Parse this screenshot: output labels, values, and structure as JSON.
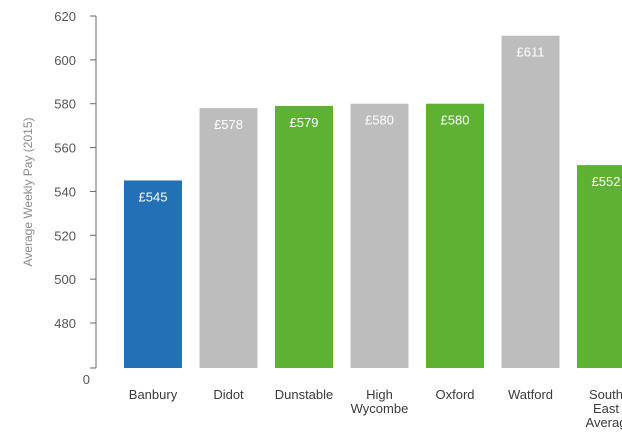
{
  "chart_data": {
    "type": "bar",
    "title": "",
    "xlabel": "",
    "ylabel": "Average Weekly Pay (2015)",
    "ylim": [
      0,
      620
    ],
    "axis_break": {
      "from": 0,
      "to": 480
    },
    "y_ticks": [
      480,
      500,
      520,
      540,
      560,
      580,
      600,
      620
    ],
    "y_zero_label": "0",
    "categories": [
      [
        "Banbury"
      ],
      [
        "Didot"
      ],
      [
        "Dunstable"
      ],
      [
        "High",
        "Wycombe"
      ],
      [
        "Oxford"
      ],
      [
        "Watford"
      ],
      [
        "South",
        "East",
        "Averag"
      ]
    ],
    "values": [
      545,
      578,
      579,
      580,
      580,
      611,
      552
    ],
    "data_labels": [
      "£545",
      "£578",
      "£579",
      "£580",
      "£580",
      "£611",
      "£552"
    ],
    "bar_colors": [
      "#2370b6",
      "#bdbdbd",
      "#5db233",
      "#bdbdbd",
      "#5db233",
      "#bdbdbd",
      "#5db233"
    ],
    "grid": false,
    "legend": "none"
  }
}
